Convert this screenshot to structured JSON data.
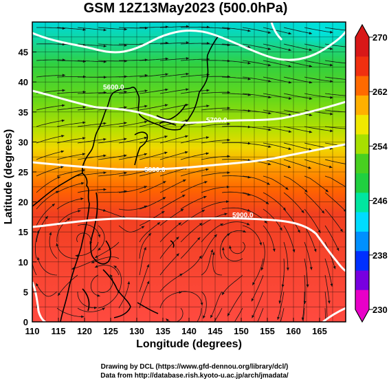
{
  "title": "GSM 12Z13May2023 (500.0hPa)",
  "map": {
    "x_axis": {
      "label": "Longitude (degrees)",
      "range": [
        110,
        170
      ],
      "ticks": [
        110,
        115,
        120,
        125,
        130,
        135,
        140,
        145,
        150,
        155,
        160,
        165
      ]
    },
    "y_axis": {
      "label": "Latitude  (degrees)",
      "range": [
        0,
        50
      ],
      "ticks": [
        0,
        5,
        10,
        15,
        20,
        25,
        30,
        35,
        40,
        45
      ]
    },
    "colorbar": {
      "range": [
        230,
        270
      ],
      "ticks": [
        230,
        238,
        246,
        254,
        262,
        270
      ],
      "colors": [
        "#e800c8",
        "#7800e0",
        "#0030ff",
        "#0090ff",
        "#00dcff",
        "#00e6a0",
        "#20d040",
        "#48d020",
        "#a8e000",
        "#f0e800",
        "#ffb000",
        "#ff6a00",
        "#f03010",
        "#d81818"
      ]
    },
    "contour_labels": [
      "5600.0",
      "5700.0",
      "5800.0",
      "5900.0"
    ],
    "highlight_contour": "5800.0"
  },
  "credits": [
    "Drawing by DCL (https://www.gfd-dennou.org/library/dcl/)",
    "Data from http://database.rish.kyoto-u.ac.jp/arch/jmadata/"
  ]
}
